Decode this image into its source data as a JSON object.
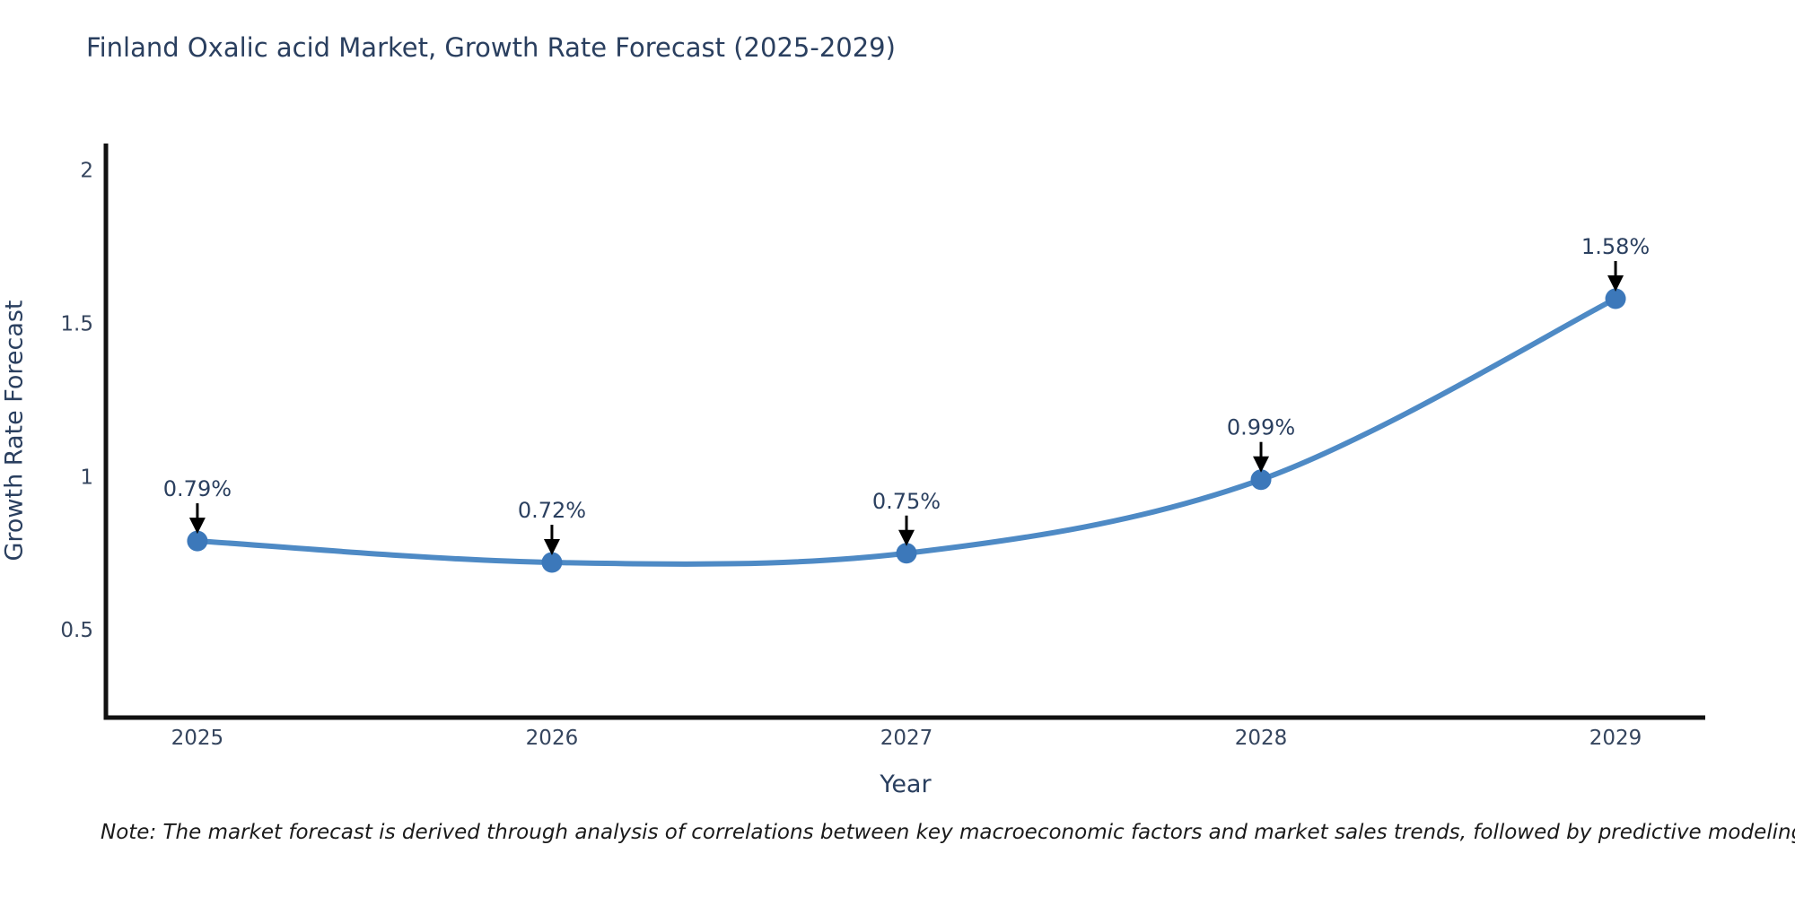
{
  "note": "Note: The market forecast is derived through analysis of correlations between key macroeconomic factors and market sales trends, followed by predictive modeling to project future sales",
  "chart_data": {
    "type": "line",
    "title": "Finland Oxalic acid Market, Growth Rate Forecast (2025-2029)",
    "xlabel": "Year",
    "ylabel": "Growth Rate Forecast",
    "x": [
      2025,
      2026,
      2027,
      2028,
      2029
    ],
    "x_tick_labels": [
      "2025",
      "2026",
      "2027",
      "2028",
      "2029"
    ],
    "series": [
      {
        "name": "Growth Rate Forecast",
        "values": [
          0.79,
          0.72,
          0.75,
          0.99,
          1.58
        ]
      }
    ],
    "point_labels": [
      "0.79%",
      "0.72%",
      "0.75%",
      "0.99%",
      "1.58%"
    ],
    "yticks": [
      0.5,
      1,
      1.5,
      2
    ],
    "ytick_labels": [
      "0.5",
      "1",
      "1.5",
      "2"
    ],
    "ylim": [
      0.214,
      2.086
    ],
    "xlim": [
      2024.742,
      2029.253
    ],
    "grid": false,
    "legend_position": "none",
    "line_shape": "spline",
    "colors": {
      "line": "#4e8ac5",
      "marker": "#3c78ba",
      "axis": "#111111",
      "title_text": "#2a3f5f",
      "tick_text": "#35455e",
      "annotation_text": "#2a3f5f",
      "annotation_arrow": "#000000",
      "note_text": "#1a1a1a",
      "background": "#ffffff"
    }
  }
}
